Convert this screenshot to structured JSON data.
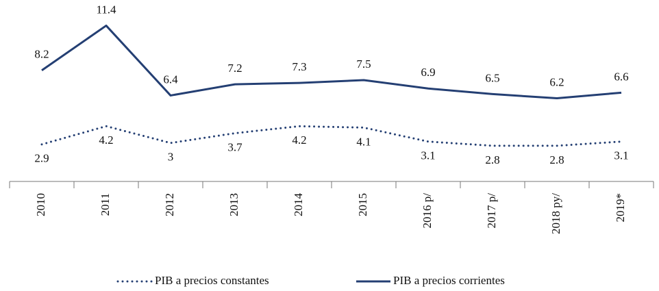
{
  "chart_data": {
    "type": "line",
    "categories": [
      "2010",
      "2011",
      "2012",
      "2013",
      "2014",
      "2015",
      "2016 p/",
      "2017 p/",
      "2018 py/",
      "2019*"
    ],
    "series": [
      {
        "name": "PIB a precios constantes",
        "color": "#243f73",
        "style": "dotted",
        "values": [
          2.9,
          4.2,
          3,
          3.7,
          4.2,
          4.1,
          3.1,
          2.8,
          2.8,
          3.1
        ]
      },
      {
        "name": "PIB a precios corrientes",
        "color": "#243f73",
        "style": "solid",
        "values": [
          8.2,
          11.4,
          6.4,
          7.2,
          7.3,
          7.5,
          6.9,
          6.5,
          6.2,
          6.6
        ]
      }
    ],
    "legend": "bottom"
  }
}
